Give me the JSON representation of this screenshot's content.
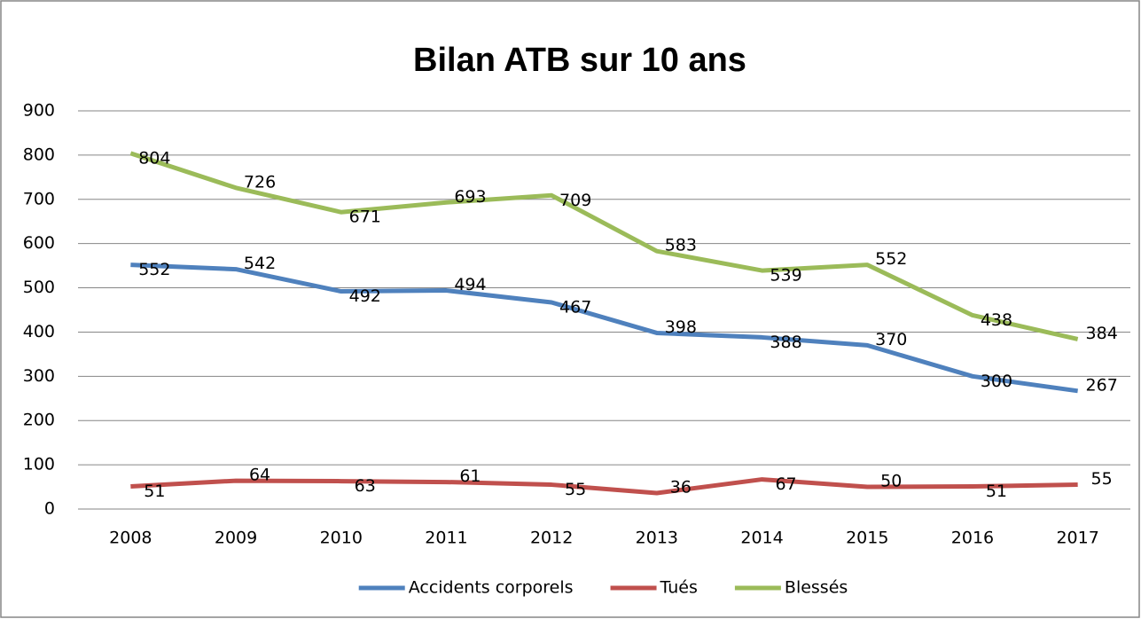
{
  "chart_data": {
    "type": "line",
    "title": "Bilan ATB sur 10 ans",
    "categories": [
      "2008",
      "2009",
      "2010",
      "2011",
      "2012",
      "2013",
      "2014",
      "2015",
      "2016",
      "2017"
    ],
    "series": [
      {
        "name": "Accidents corporels",
        "color": "#4f81bd",
        "values": [
          552,
          542,
          492,
          494,
          467,
          398,
          388,
          370,
          300,
          267
        ]
      },
      {
        "name": "Tués",
        "color": "#c0504d",
        "values": [
          51,
          64,
          63,
          61,
          55,
          36,
          67,
          50,
          51,
          55
        ]
      },
      {
        "name": "Blessés",
        "color": "#9bbb59",
        "values": [
          804,
          726,
          671,
          693,
          709,
          583,
          539,
          552,
          438,
          384
        ]
      }
    ],
    "ylim": [
      0,
      900
    ],
    "yticks": [
      0,
      100,
      200,
      300,
      400,
      500,
      600,
      700,
      800,
      900
    ],
    "grid": true,
    "legend": "bottom"
  }
}
